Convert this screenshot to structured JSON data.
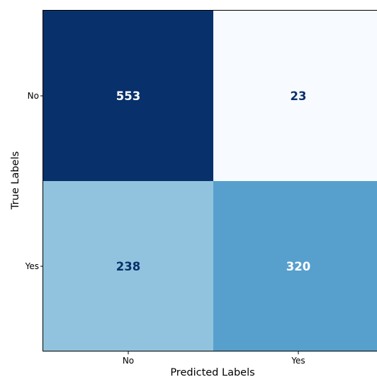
{
  "chart_data": {
    "type": "heatmap",
    "title": "",
    "xlabel": "Predicted Labels",
    "ylabel": "True Labels",
    "x_categories": [
      "No",
      "Yes"
    ],
    "y_categories": [
      "No",
      "Yes"
    ],
    "values": [
      [
        553,
        23
      ],
      [
        238,
        320
      ]
    ],
    "colormap": "Blues",
    "colormap_stops": [
      "#f7fbff",
      "#deebf7",
      "#c6dbef",
      "#9ecae1",
      "#6baed6",
      "#4292c6",
      "#2171b5",
      "#08519c",
      "#08306b"
    ],
    "value_range": [
      23,
      553
    ],
    "annotation_colors": {
      "dark_cell_text": "#ffffff",
      "light_cell_text": "#08306b"
    }
  }
}
